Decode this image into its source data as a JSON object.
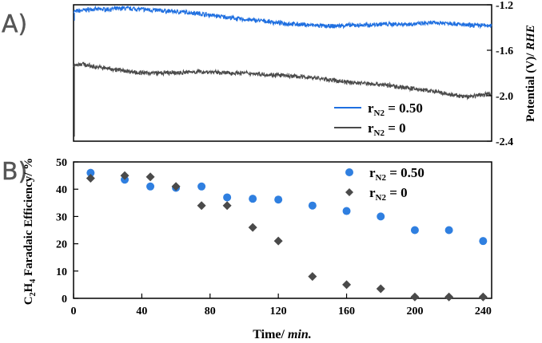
{
  "chart_data": [
    {
      "type": "line",
      "panel_label": "A)",
      "ylabel": "Potential (V)/ RHE",
      "ylabel_plain": "Potential (V)/ ",
      "ylabel_italic": "RHE",
      "x_range": [
        0,
        245
      ],
      "ylim": [
        -2.4,
        -1.2
      ],
      "y_axis_side": "right",
      "y_ticks": [
        -1.2,
        -1.6,
        -2.0,
        -2.4
      ],
      "y_tick_labels": [
        "-1.2",
        "-1.6",
        "-2.0",
        "-2.4"
      ],
      "legend_position": "bottom-right",
      "series": [
        {
          "name": "rN2 = 0.50",
          "legend_main": "r",
          "legend_sub": "N2",
          "legend_rest": " = 0.50",
          "color": "#1f6fe0",
          "x": [
            0,
            5,
            10,
            20,
            30,
            40,
            50,
            60,
            70,
            80,
            90,
            100,
            110,
            120,
            130,
            140,
            150,
            160,
            170,
            180,
            190,
            200,
            210,
            220,
            230,
            240,
            245
          ],
          "y": [
            -1.26,
            -1.25,
            -1.24,
            -1.24,
            -1.23,
            -1.24,
            -1.25,
            -1.26,
            -1.27,
            -1.29,
            -1.31,
            -1.33,
            -1.34,
            -1.36,
            -1.37,
            -1.38,
            -1.39,
            -1.38,
            -1.38,
            -1.37,
            -1.37,
            -1.37,
            -1.36,
            -1.36,
            -1.38,
            -1.38,
            -1.39
          ]
        },
        {
          "name": "rN2 = 0",
          "legend_main": "r",
          "legend_sub": "N2",
          "legend_rest": " = 0",
          "color": "#4a4a4a",
          "x": [
            0,
            5,
            10,
            20,
            30,
            40,
            50,
            60,
            70,
            80,
            90,
            100,
            110,
            120,
            130,
            140,
            150,
            160,
            170,
            180,
            190,
            200,
            210,
            220,
            230,
            240,
            245
          ],
          "y": [
            -1.73,
            -1.72,
            -1.74,
            -1.76,
            -1.78,
            -1.8,
            -1.8,
            -1.8,
            -1.79,
            -1.79,
            -1.8,
            -1.8,
            -1.81,
            -1.82,
            -1.83,
            -1.84,
            -1.86,
            -1.88,
            -1.89,
            -1.9,
            -1.92,
            -1.94,
            -1.96,
            -1.99,
            -2.01,
            -1.99,
            -1.98
          ]
        }
      ]
    },
    {
      "type": "scatter",
      "panel_label": "B)",
      "xlabel": "Time/ min.",
      "xlabel_plain": "Time/ ",
      "xlabel_italic": "min.",
      "ylabel": "C2H4 Faradaic Efficiency/ %",
      "xlim": [
        0,
        245
      ],
      "ylim": [
        0,
        50
      ],
      "x_ticks": [
        0,
        40,
        80,
        120,
        160,
        200,
        240
      ],
      "x_tick_labels": [
        "0",
        "40",
        "80",
        "120",
        "160",
        "200",
        "240"
      ],
      "y_ticks": [
        0,
        10,
        20,
        30,
        40,
        50
      ],
      "y_tick_labels": [
        "0",
        "10",
        "20",
        "30",
        "40",
        "50"
      ],
      "legend_position": "top-right",
      "series": [
        {
          "name": "rN2 = 0.50",
          "legend_main": "r",
          "legend_sub": "N2",
          "legend_rest": " = 0.50",
          "marker": "circle",
          "color": "#2f7fe0",
          "x": [
            10,
            30,
            45,
            60,
            75,
            90,
            105,
            120,
            140,
            160,
            180,
            200,
            220,
            240
          ],
          "y": [
            46,
            43.5,
            41,
            40.5,
            41,
            37,
            36.5,
            36.2,
            34,
            32,
            30,
            25,
            25,
            21
          ]
        },
        {
          "name": "rN2 = 0",
          "legend_main": "r",
          "legend_sub": "N2",
          "legend_rest": " = 0",
          "marker": "diamond",
          "color": "#4a4a4a",
          "x": [
            10,
            30,
            45,
            60,
            75,
            90,
            105,
            120,
            140,
            160,
            180,
            200,
            220,
            240
          ],
          "y": [
            44,
            45,
            44.5,
            41,
            34,
            34,
            26,
            21,
            8,
            5,
            3.5,
            0.5,
            0.5,
            0.5
          ]
        }
      ]
    }
  ]
}
